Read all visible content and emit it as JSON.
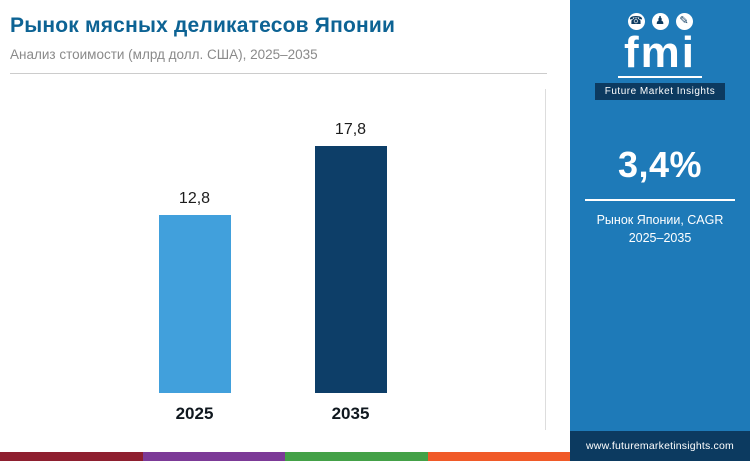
{
  "header": {
    "title": "Рынок мясных деликатесов Японии",
    "subtitle": "Анализ стоимости (млрд долл. США), 2025–2035"
  },
  "chart_data": {
    "type": "bar",
    "title": "Рынок мясных деликатесов Японии",
    "subtitle": "Анализ стоимости (млрд долл. США), 2025–2035",
    "categories": [
      "2025",
      "2035"
    ],
    "values": [
      12.8,
      17.8
    ],
    "value_labels": [
      "12,8",
      "17,8"
    ],
    "unit": "млрд долл. США",
    "ylim": [
      0,
      20
    ],
    "grid": false,
    "legend": "none",
    "bar_colors": [
      "#41a0dc",
      "#0d3e68"
    ]
  },
  "sidebar": {
    "logo": {
      "text": "fmi",
      "tagline": "Future Market Insights",
      "icon_glyphs": [
        "☎",
        "♟",
        "✎"
      ]
    },
    "cagr": {
      "value": "3,4%",
      "label_line1": "Рынок Японии, CAGR",
      "label_line2": "2025–2035"
    },
    "website": "www.futuremarketinsights.com",
    "background": "#1e7ab8",
    "footer_background": "#0c3a60"
  },
  "footer_stripes": [
    "#8e1f2f",
    "#7c3a97",
    "#44a147",
    "#f05a28"
  ],
  "colors": {
    "title": "#0d6394",
    "subtitle": "#8a8a8a",
    "bar_2025": "#41a0dc",
    "bar_2035": "#0d3e68"
  }
}
